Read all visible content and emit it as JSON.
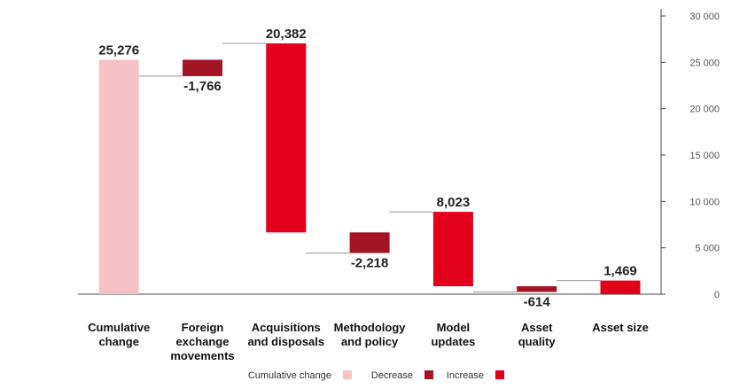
{
  "chart_data": {
    "type": "bar",
    "subtype": "waterfall",
    "mirrored": true,
    "y_axis_position": "right",
    "ylim": [
      0,
      30000
    ],
    "yticks": [
      {
        "value": 0,
        "label": "0"
      },
      {
        "value": 5000,
        "label": "5 000"
      },
      {
        "value": 10000,
        "label": "10 000"
      },
      {
        "value": 15000,
        "label": "15 000"
      },
      {
        "value": 20000,
        "label": "20 000"
      },
      {
        "value": 25000,
        "label": "25 000"
      },
      {
        "value": 30000,
        "label": "30 000"
      }
    ],
    "categories": [
      {
        "lines": [
          "Asset size"
        ]
      },
      {
        "lines": [
          "Asset",
          "quality"
        ]
      },
      {
        "lines": [
          "Model",
          "updates"
        ]
      },
      {
        "lines": [
          "Methodology",
          "and policy"
        ]
      },
      {
        "lines": [
          "Acquisitions",
          "and disposals"
        ]
      },
      {
        "lines": [
          "Foreign",
          "exchange",
          "movements"
        ]
      },
      {
        "lines": [
          "Cumulative",
          "change"
        ]
      }
    ],
    "bars": [
      {
        "category": "Asset size",
        "kind": "increase",
        "value": 1469,
        "base": 0,
        "label": "1,469"
      },
      {
        "category": "Asset quality",
        "kind": "decrease",
        "value": -614,
        "base": 855,
        "label": "-614"
      },
      {
        "category": "Model updates",
        "kind": "increase",
        "value": 8023,
        "base": 855,
        "label": "8,023"
      },
      {
        "category": "Methodology and policy",
        "kind": "decrease",
        "value": -2218,
        "base": 6660,
        "label": "-2,218"
      },
      {
        "category": "Acquisitions and disposals",
        "kind": "increase",
        "value": 20382,
        "base": 6660,
        "label": "20,382"
      },
      {
        "category": "Foreign exchange movements",
        "kind": "decrease",
        "value": -1766,
        "base": 25276,
        "label": "-1,766"
      },
      {
        "category": "Cumulative change",
        "kind": "cumulative",
        "value": 25276,
        "base": 0,
        "label": "25,276"
      }
    ],
    "legend": {
      "placement": "bottom-center",
      "items": [
        {
          "key": "increase",
          "label": "Increase"
        },
        {
          "key": "decrease",
          "label": "Decrease"
        },
        {
          "key": "cumulative",
          "label": "Cumulative change"
        }
      ]
    },
    "colors": {
      "increase": "#e2001a",
      "decrease": "#a31424",
      "cumulative": "#f6c1c7",
      "axis": "#444444",
      "connector": "#999999"
    },
    "grid": false
  }
}
